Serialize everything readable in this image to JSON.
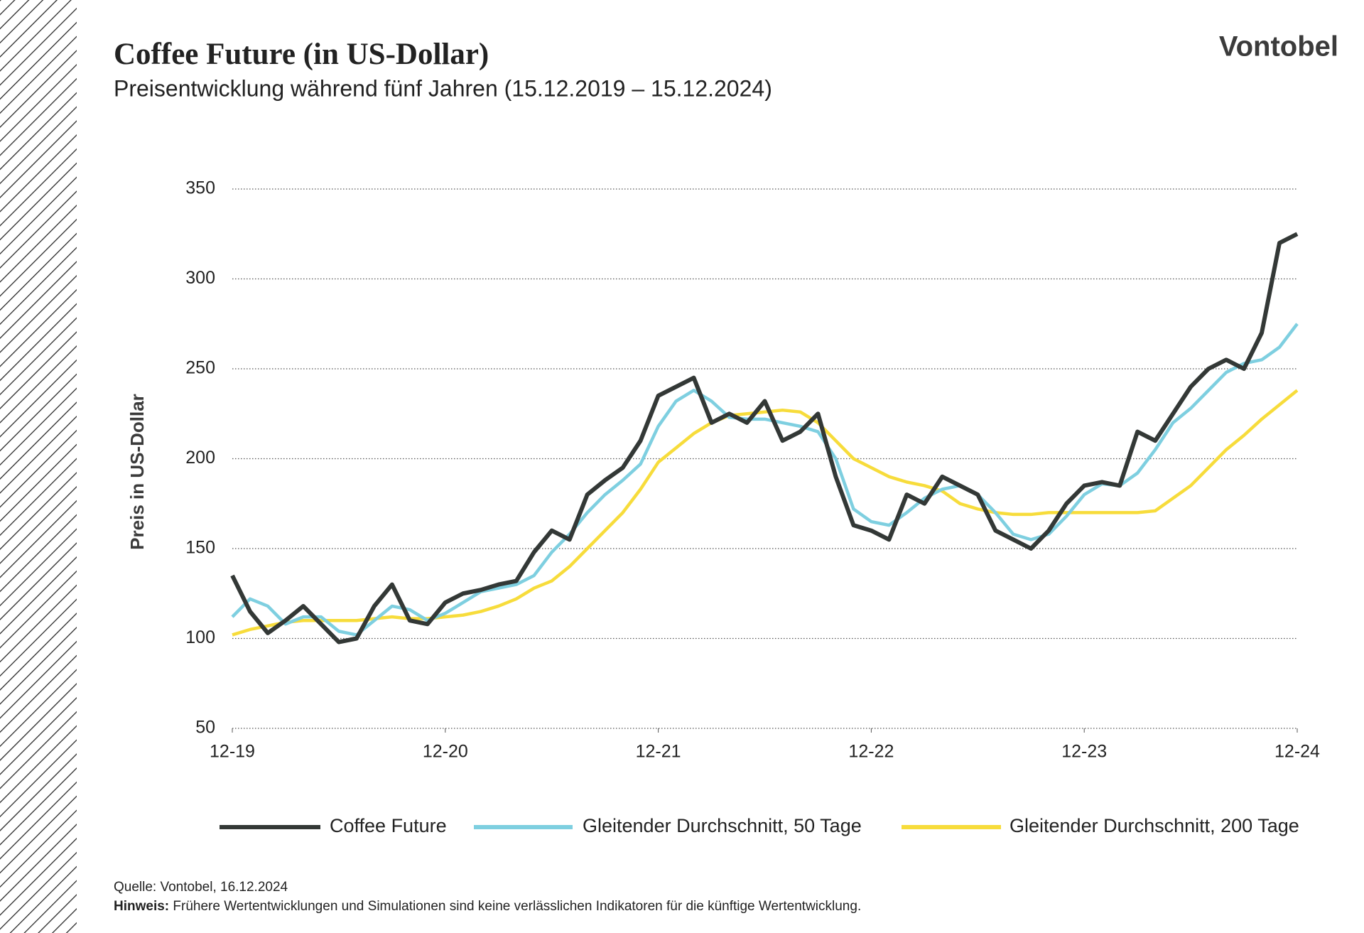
{
  "brand": "Vontobel",
  "source": "Quelle:  Vontobel,  16.12.2024",
  "note": {
    "label": "Hinweis:",
    "text": "Frühere Wertentwicklungen und Simulationen sind keine verlässlichen Indikatoren für die künftige Wertentwicklung."
  },
  "chart_data": {
    "type": "line",
    "title": "Coffee Future (in US-Dollar)",
    "subtitle": "Preisentwicklung während fünf Jahren (15.12.2019 – 15.12.2024)",
    "y_label": "Preis in US-Dollar",
    "x": [
      "2019-12",
      "2020-01",
      "2020-02",
      "2020-03",
      "2020-04",
      "2020-05",
      "2020-06",
      "2020-07",
      "2020-08",
      "2020-09",
      "2020-10",
      "2020-11",
      "2020-12",
      "2021-01",
      "2021-02",
      "2021-03",
      "2021-04",
      "2021-05",
      "2021-06",
      "2021-07",
      "2021-08",
      "2021-09",
      "2021-10",
      "2021-11",
      "2021-12",
      "2022-01",
      "2022-02",
      "2022-03",
      "2022-04",
      "2022-05",
      "2022-06",
      "2022-07",
      "2022-08",
      "2022-09",
      "2022-10",
      "2022-11",
      "2022-12",
      "2023-01",
      "2023-02",
      "2023-03",
      "2023-04",
      "2023-05",
      "2023-06",
      "2023-07",
      "2023-08",
      "2023-09",
      "2023-10",
      "2023-11",
      "2023-12",
      "2024-01",
      "2024-02",
      "2024-03",
      "2024-04",
      "2024-05",
      "2024-06",
      "2024-07",
      "2024-08",
      "2024-09",
      "2024-10",
      "2024-11",
      "2024-12"
    ],
    "series": [
      {
        "name": "Coffee Future",
        "color": "#333836",
        "values": [
          135,
          115,
          103,
          110,
          118,
          108,
          98,
          100,
          118,
          130,
          110,
          108,
          120,
          125,
          127,
          130,
          132,
          148,
          160,
          155,
          180,
          188,
          195,
          210,
          235,
          240,
          245,
          220,
          225,
          220,
          232,
          210,
          215,
          225,
          190,
          163,
          160,
          155,
          180,
          175,
          190,
          185,
          180,
          160,
          155,
          150,
          160,
          175,
          185,
          187,
          185,
          215,
          210,
          225,
          240,
          250,
          255,
          250,
          270,
          320,
          325
        ]
      },
      {
        "name": "Gleitender Durchschnitt, 50 Tage",
        "color": "#7ecfe0",
        "values": [
          112,
          122,
          118,
          108,
          112,
          112,
          104,
          102,
          110,
          118,
          116,
          110,
          114,
          120,
          126,
          128,
          130,
          135,
          148,
          158,
          170,
          180,
          188,
          197,
          218,
          232,
          238,
          232,
          223,
          222,
          222,
          220,
          218,
          215,
          200,
          172,
          165,
          163,
          170,
          178,
          183,
          185,
          180,
          170,
          158,
          155,
          158,
          168,
          180,
          186,
          185,
          192,
          205,
          220,
          228,
          238,
          248,
          253,
          255,
          262,
          275
        ]
      },
      {
        "name": "Gleitender Durchschnitt, 200 Tage",
        "color": "#f7dc3b",
        "values": [
          102,
          105,
          107,
          109,
          110,
          110,
          110,
          110,
          111,
          112,
          111,
          111,
          112,
          113,
          115,
          118,
          122,
          128,
          132,
          140,
          150,
          160,
          170,
          183,
          198,
          206,
          214,
          220,
          224,
          225,
          226,
          227,
          226,
          220,
          210,
          200,
          195,
          190,
          187,
          185,
          182,
          175,
          172,
          170,
          169,
          169,
          170,
          170,
          170,
          170,
          170,
          170,
          171,
          178,
          185,
          195,
          205,
          213,
          222,
          230,
          238
        ]
      }
    ],
    "xlim": [
      "2019-12",
      "2024-12"
    ],
    "xticks": [
      {
        "value": "2019-12",
        "label": "12-19"
      },
      {
        "value": "2020-12",
        "label": "12-20"
      },
      {
        "value": "2021-12",
        "label": "12-21"
      },
      {
        "value": "2022-12",
        "label": "12-22"
      },
      {
        "value": "2023-12",
        "label": "12-23"
      },
      {
        "value": "2024-12",
        "label": "12-24"
      }
    ],
    "ylim": [
      50,
      350
    ],
    "yticks": [
      50,
      100,
      150,
      200,
      250,
      300,
      350
    ],
    "grid": true
  }
}
